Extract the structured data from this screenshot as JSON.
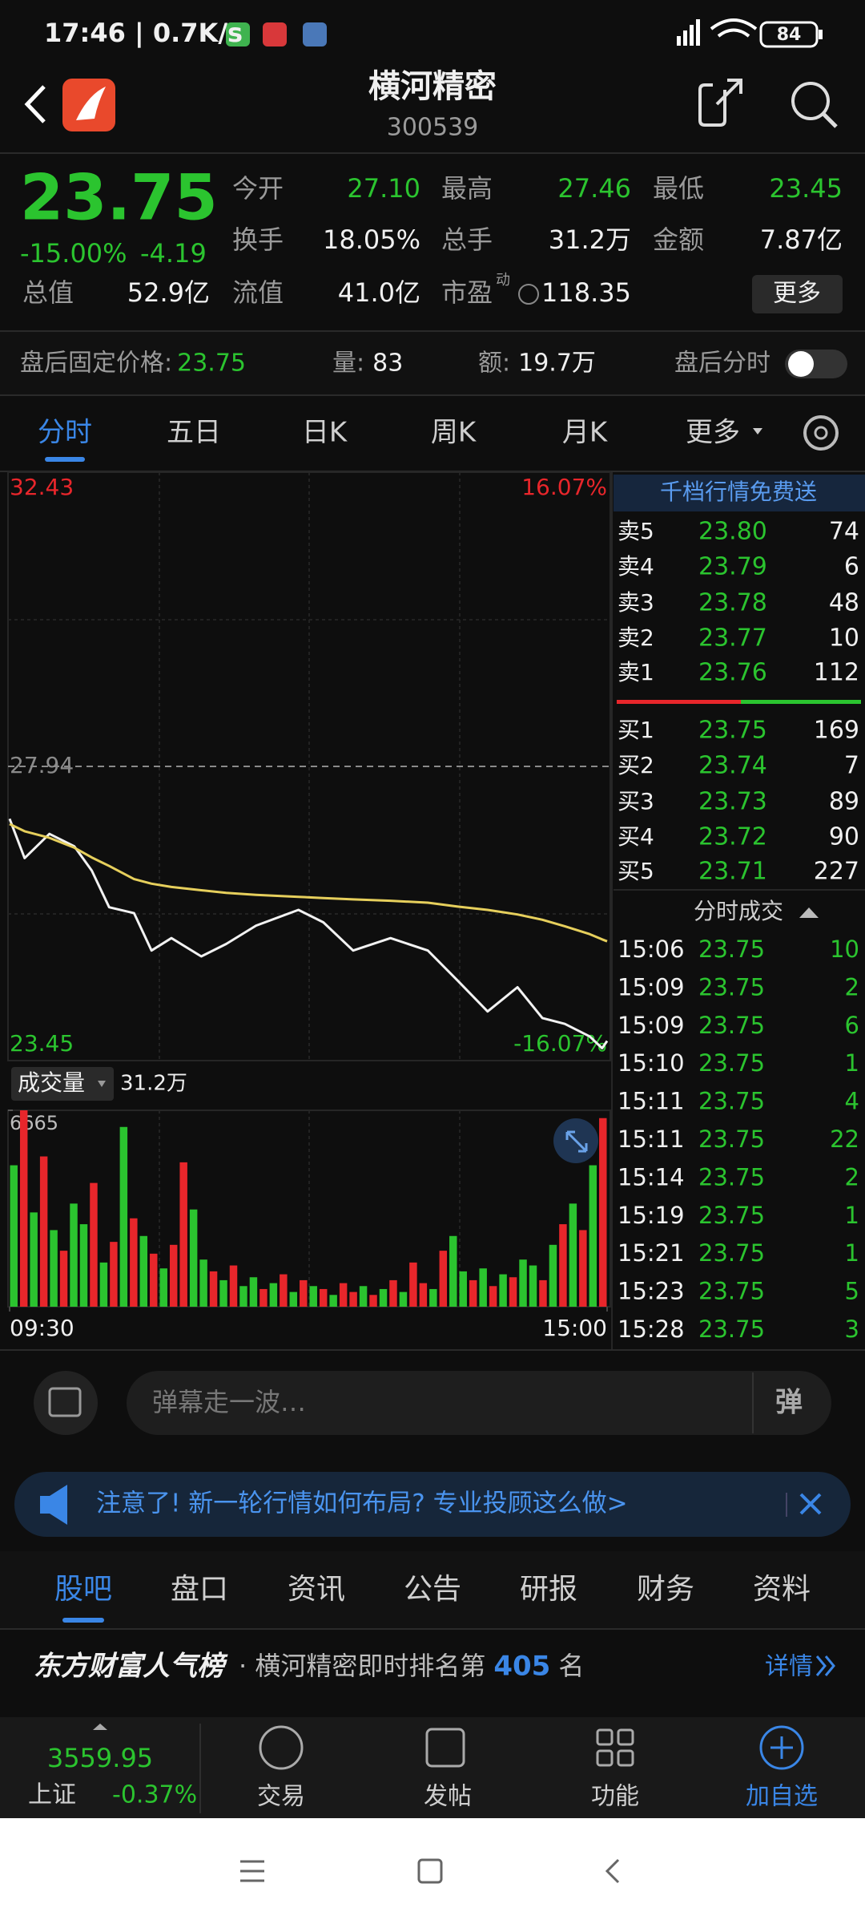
{
  "status_bar": {
    "time": "17:46 | 0.7K/s",
    "battery": "84"
  },
  "header": {
    "title": "横河精密",
    "code": "300539"
  },
  "quote": {
    "price": "23.75",
    "change_pct": "-15.00%",
    "change": "-4.19",
    "row1": [
      {
        "label": "今开",
        "value": "27.10"
      },
      {
        "label": "最高",
        "value": "27.46"
      },
      {
        "label": "最低",
        "value": "23.45"
      }
    ],
    "row2": [
      {
        "label": "换手",
        "value": "18.05%"
      },
      {
        "label": "总手",
        "value": "31.2万"
      },
      {
        "label": "金额",
        "value": "7.87亿"
      }
    ],
    "row3": [
      {
        "label": "总值",
        "value": "52.9亿"
      },
      {
        "label": "流值",
        "value": "41.0亿"
      },
      {
        "label": "市盈",
        "value": "118.35"
      }
    ],
    "pe_superscript": "动",
    "more_button": "更多"
  },
  "after_hours": {
    "price_label": "盘后固定价格:",
    "price": "23.75",
    "volume_label": "量:",
    "volume": "83",
    "amount_label": "额:",
    "amount": "19.7万",
    "toggle_label": "盘后分时"
  },
  "tabs": [
    "分时",
    "五日",
    "日K",
    "周K",
    "月K",
    "更多"
  ],
  "chart_data": [
    {
      "type": "line",
      "x": [
        0,
        6,
        16,
        26,
        33,
        40,
        50,
        57,
        65,
        77,
        87,
        99,
        116,
        126,
        138,
        153,
        168,
        180,
        192,
        204,
        214,
        223,
        233,
        238,
        240
      ],
      "xlim": [
        0,
        240
      ],
      "xticks": [
        {
          "value": 0,
          "label": "09:30"
        },
        {
          "value": 240,
          "label": "15:00"
        }
      ],
      "ylim": [
        23.45,
        32.43
      ],
      "yticks": [
        23.45,
        27.94,
        32.43
      ],
      "y2lim": [
        -16.07,
        16.07
      ],
      "y2ticks": [
        {
          "value": -16.07,
          "label": "-16.07%"
        },
        {
          "value": 16.07,
          "label": "16.07%"
        }
      ],
      "series": [
        {
          "color": "#f2f2f2",
          "values": [
            27.14,
            26.54,
            26.91,
            26.72,
            26.35,
            25.79,
            25.7,
            25.13,
            25.32,
            25.04,
            25.23,
            25.51,
            25.75,
            25.56,
            25.13,
            25.32,
            25.13,
            24.67,
            24.2,
            24.57,
            24.1,
            24.01,
            23.82,
            23.64,
            23.75
          ]
        },
        {
          "color": "#e6cf5c",
          "values": [
            27.06,
            26.95,
            26.85,
            26.7,
            26.55,
            26.42,
            26.22,
            26.15,
            26.1,
            26.05,
            26.01,
            25.98,
            25.95,
            25.93,
            25.91,
            25.89,
            25.86,
            25.8,
            25.75,
            25.68,
            25.6,
            25.5,
            25.38,
            25.3,
            25.27
          ]
        }
      ]
    },
    {
      "type": "bar",
      "title": "成交量",
      "subtitle": "31.2万",
      "ylim": [
        0,
        6665
      ],
      "yticks": [
        6665
      ],
      "values": [
        4800,
        6665,
        3200,
        5100,
        2600,
        1900,
        3500,
        2800,
        4200,
        1500,
        2200,
        6100,
        3000,
        2400,
        1800,
        1300,
        2100,
        4900,
        3300,
        1600,
        1200,
        900,
        1400,
        700,
        1000,
        600,
        800,
        1100,
        500,
        900,
        700,
        600,
        400,
        800,
        500,
        700,
        400,
        600,
        900,
        500,
        1500,
        800,
        600,
        1900,
        2400,
        1200,
        900,
        1300,
        700,
        1100,
        1000,
        1600,
        1400,
        900,
        2100,
        2800,
        3500,
        2600,
        4800,
        6400
      ],
      "colors": [
        "#2bc42f",
        "#e8262b",
        "#2bc42f",
        "#e8262b",
        "#2bc42f",
        "#e8262b",
        "#2bc42f",
        "#2bc42f",
        "#e8262b",
        "#2bc42f",
        "#e8262b",
        "#2bc42f",
        "#e8262b",
        "#2bc42f",
        "#e8262b",
        "#2bc42f",
        "#e8262b",
        "#e8262b",
        "#2bc42f",
        "#2bc42f",
        "#e8262b",
        "#2bc42f",
        "#e8262b",
        "#2bc42f",
        "#2bc42f",
        "#e8262b",
        "#2bc42f",
        "#e8262b",
        "#2bc42f",
        "#e8262b",
        "#2bc42f",
        "#e8262b",
        "#2bc42f",
        "#e8262b",
        "#e8262b",
        "#2bc42f",
        "#e8262b",
        "#2bc42f",
        "#e8262b",
        "#2bc42f",
        "#e8262b",
        "#e8262b",
        "#2bc42f",
        "#e8262b",
        "#2bc42f",
        "#2bc42f",
        "#e8262b",
        "#2bc42f",
        "#e8262b",
        "#2bc42f",
        "#e8262b",
        "#2bc42f",
        "#2bc42f",
        "#e8262b",
        "#2bc42f",
        "#e8262b",
        "#2bc42f",
        "#e8262b",
        "#2bc42f",
        "#e8262b"
      ]
    }
  ],
  "order_book": {
    "header": "千档行情免费送",
    "asks": [
      {
        "label": "卖5",
        "price": "23.80",
        "volume": "74"
      },
      {
        "label": "卖4",
        "price": "23.79",
        "volume": "6"
      },
      {
        "label": "卖3",
        "price": "23.78",
        "volume": "48"
      },
      {
        "label": "卖2",
        "price": "23.77",
        "volume": "10"
      },
      {
        "label": "卖1",
        "price": "23.76",
        "volume": "112"
      }
    ],
    "bids": [
      {
        "label": "买1",
        "price": "23.75",
        "volume": "169"
      },
      {
        "label": "买2",
        "price": "23.74",
        "volume": "7"
      },
      {
        "label": "买3",
        "price": "23.73",
        "volume": "89"
      },
      {
        "label": "买4",
        "price": "23.72",
        "volume": "90"
      },
      {
        "label": "买5",
        "price": "23.71",
        "volume": "227"
      }
    ]
  },
  "trades": {
    "title": "分时成交",
    "rows": [
      [
        "15:06",
        "23.75",
        "10"
      ],
      [
        "15:09",
        "23.75",
        "2"
      ],
      [
        "15:09",
        "23.75",
        "6"
      ],
      [
        "15:10",
        "23.75",
        "1"
      ],
      [
        "15:11",
        "23.75",
        "4"
      ],
      [
        "15:11",
        "23.75",
        "22"
      ],
      [
        "15:14",
        "23.75",
        "2"
      ],
      [
        "15:19",
        "23.75",
        "1"
      ],
      [
        "15:21",
        "23.75",
        "1"
      ],
      [
        "15:23",
        "23.75",
        "5"
      ],
      [
        "15:28",
        "23.75",
        "3"
      ]
    ]
  },
  "comment_bar": {
    "placeholder": "弹幕走一波…",
    "button": "弹"
  },
  "notice": "注意了! 新一轮行情如何布局? 专业投顾这么做>",
  "section_tabs": [
    "股吧",
    "盘口",
    "资讯",
    "公告",
    "研报",
    "财务",
    "资料"
  ],
  "ranking": {
    "brand": "东方财富人气榜",
    "text": "· 横河精密即时排名第",
    "rank": "405",
    "suffix": "名",
    "link": "详情"
  },
  "bottom_nav": {
    "index_value": "3559.95",
    "index_name": "上证",
    "index_change": "-0.37%",
    "items": [
      "交易",
      "发帖",
      "功能",
      "加自选"
    ]
  }
}
